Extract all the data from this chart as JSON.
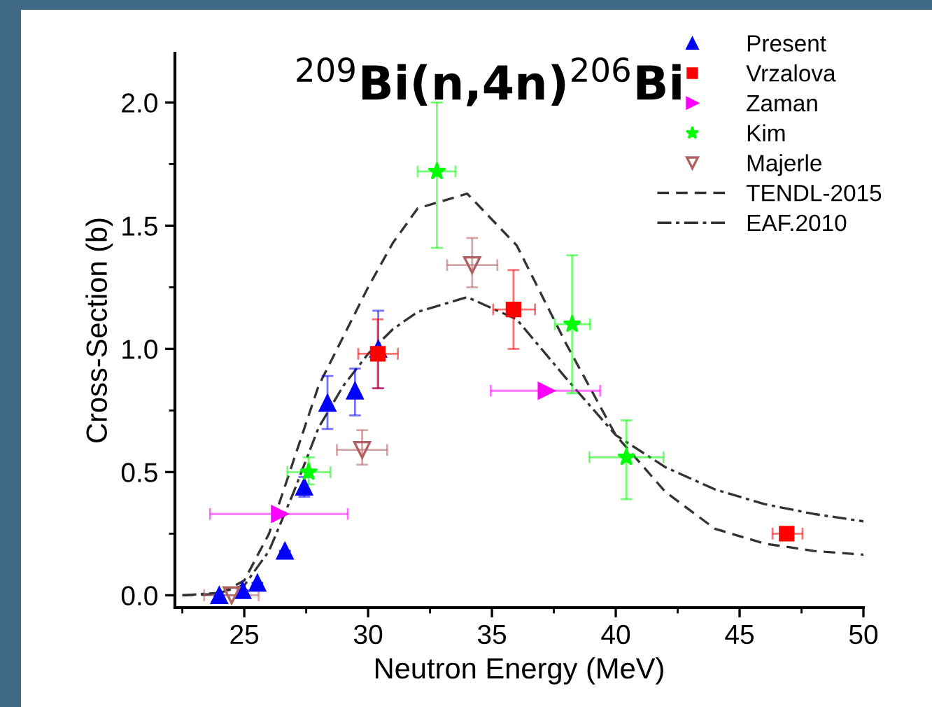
{
  "chart_data": {
    "type": "scatter",
    "title": "$^{209}$Bi(n,4n)$^{206}$Bi",
    "xlabel": "Neutron Energy (MeV)",
    "ylabel": "Cross-Section (b)",
    "xlim": [
      22.2,
      50
    ],
    "xticks": [
      25,
      30,
      35,
      40,
      45,
      50
    ],
    "ylim": [
      -0.05,
      2.2
    ],
    "yticks": [
      {
        "value": 0,
        "label": "0.0"
      },
      0.5,
      {
        "value": 1,
        "label": "1.0"
      },
      1.5,
      {
        "value": 2,
        "label": "2.0"
      }
    ],
    "grid": false,
    "legend": "top right",
    "series": [
      {
        "name": "Present",
        "marker": "triangle",
        "color": "#0000ff",
        "x": [
          23.99,
          24.93,
          25.53,
          26.64,
          27.42,
          28.36,
          29.47,
          30.41
        ],
        "values": [
          0.0,
          0.02,
          0.05,
          0.18,
          0.44,
          0.78,
          0.83,
          1.0
        ],
        "errors": [
          null,
          null,
          null,
          null,
          [
            0.4,
            0.48
          ],
          [
            0.675,
            0.89
          ],
          [
            0.73,
            0.92
          ],
          [
            0.84,
            1.155
          ]
        ]
      },
      {
        "name": "Vrzalova",
        "marker": "square",
        "color": "#ff0000",
        "x": [
          30.39,
          35.87,
          46.9
        ],
        "values": [
          0.98,
          1.16,
          0.25
        ],
        "errors": [
          [
            0.84,
            1.12
          ],
          [
            1.0,
            1.32
          ],
          null
        ],
        "xerrors": [
          [
            29.6,
            31.2
          ],
          [
            35.05,
            36.74
          ],
          [
            46.33,
            47.54
          ]
        ]
      },
      {
        "name": "Zaman",
        "marker": "triangle_right",
        "color": "#ff00ff",
        "x": [
          26.43,
          37.2
        ],
        "values": [
          0.33,
          0.83
        ],
        "xerrors": [
          [
            23.62,
            29.18
          ],
          [
            34.95,
            39.37
          ]
        ]
      },
      {
        "name": "Kim",
        "marker": "star",
        "color": "#00ff00",
        "x": [
          27.6,
          32.78,
          38.24,
          40.43
        ],
        "values": [
          0.5,
          1.72,
          1.1,
          0.56
        ],
        "errors": [
          [
            0.45,
            0.56
          ],
          [
            1.41,
            2.0
          ],
          [
            0.82,
            1.38
          ],
          [
            0.39,
            0.71
          ]
        ],
        "xerrors": [
          [
            26.74,
            28.48
          ],
          [
            32.0,
            33.53
          ],
          [
            37.54,
            38.96
          ],
          [
            38.94,
            41.93
          ]
        ]
      },
      {
        "name": "Majerle",
        "marker": "triangle_down_open",
        "color": "#b06060",
        "x": [
          24.49,
          29.76,
          34.2
        ],
        "values": [
          0.0,
          0.59,
          1.34
        ],
        "errors": [
          null,
          [
            0.53,
            0.67
          ],
          [
            1.25,
            1.45
          ]
        ],
        "xerrors": [
          [
            23.38,
            25.58
          ],
          [
            28.74,
            30.77
          ],
          [
            33.19,
            35.22
          ]
        ]
      },
      {
        "name": "TENDL-2015",
        "type": "line",
        "line_style": "dashed",
        "color": "#333333",
        "x": [
          22.5,
          24,
          25,
          26,
          27,
          28,
          29,
          30,
          31,
          32,
          34,
          36,
          38,
          40,
          42,
          44,
          46,
          48,
          50
        ],
        "values": [
          0.0,
          0.005,
          0.06,
          0.25,
          0.55,
          0.85,
          1.05,
          1.25,
          1.43,
          1.57,
          1.63,
          1.42,
          1.02,
          0.65,
          0.42,
          0.27,
          0.21,
          0.18,
          0.165
        ]
      },
      {
        "name": "EAF.2010",
        "type": "line",
        "line_style": "dashdot",
        "color": "#333333",
        "x": [
          22.5,
          24,
          25,
          26,
          27,
          28,
          29,
          30,
          31,
          32,
          34,
          36,
          38,
          40,
          42,
          44,
          46,
          48,
          50
        ],
        "values": [
          0.0,
          0.01,
          0.04,
          0.18,
          0.42,
          0.68,
          0.85,
          0.98,
          1.08,
          1.15,
          1.21,
          1.12,
          0.88,
          0.65,
          0.52,
          0.43,
          0.37,
          0.33,
          0.3
        ]
      }
    ]
  }
}
